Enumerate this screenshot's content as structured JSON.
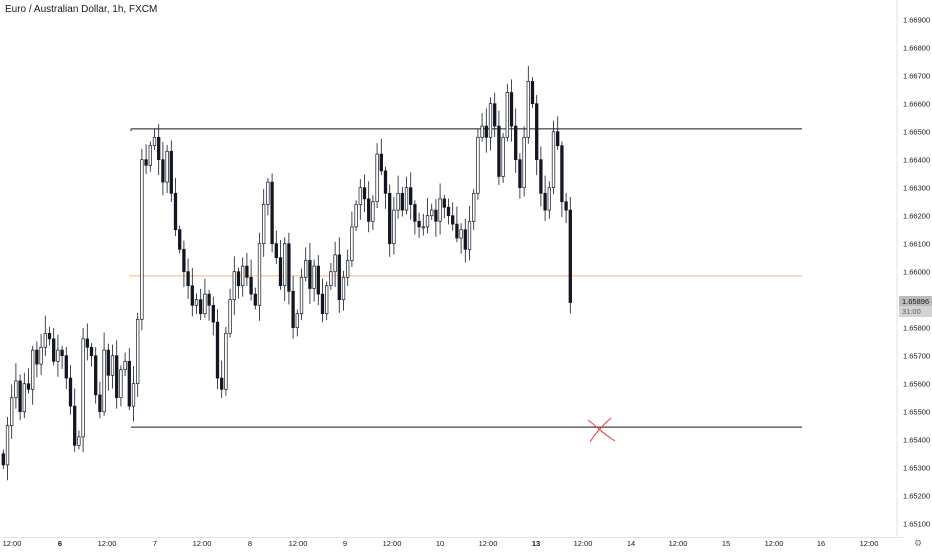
{
  "header": {
    "title": "Euro / Australian Dollar, 1h, FXCM"
  },
  "price_axis": {
    "labels": [
      "1.66900",
      "1.66800",
      "1.66700",
      "1.66600",
      "1.66500",
      "1.66400",
      "1.66300",
      "1.66200",
      "1.66100",
      "1.66000",
      "1.65800",
      "1.65700",
      "1.65600",
      "1.65500",
      "1.65400",
      "1.65300",
      "1.65200",
      "1.65100"
    ],
    "current_price": "1.65896",
    "countdown": "31:00"
  },
  "time_axis": {
    "labels": [
      {
        "text": "12:00",
        "bold": false
      },
      {
        "text": "6",
        "bold": true
      },
      {
        "text": "12:00",
        "bold": false
      },
      {
        "text": "7",
        "bold": false
      },
      {
        "text": "12:00",
        "bold": false
      },
      {
        "text": "8",
        "bold": false
      },
      {
        "text": "12:00",
        "bold": false
      },
      {
        "text": "9",
        "bold": false
      },
      {
        "text": "12:00",
        "bold": false
      },
      {
        "text": "10",
        "bold": false
      },
      {
        "text": "12:00",
        "bold": false
      },
      {
        "text": "13",
        "bold": true
      },
      {
        "text": "12:00",
        "bold": false
      },
      {
        "text": "14",
        "bold": false
      },
      {
        "text": "12:00",
        "bold": false
      },
      {
        "text": "15",
        "bold": false
      },
      {
        "text": "12:00",
        "bold": false
      },
      {
        "text": "16",
        "bold": false
      },
      {
        "text": "12:00",
        "bold": false
      }
    ]
  },
  "drawings": {
    "resistance_price": 1.6651,
    "support_price": 1.65445,
    "mid_line_price": 1.65985,
    "line_color": "#131722",
    "mid_line_color": "#f5b97f",
    "x_mark_color": "#e53935"
  },
  "colors": {
    "bull": "#ffffff",
    "bear": "#131722",
    "wick": "#131722",
    "axis_text": "#131722",
    "badge_bg": "#bcbcbc"
  },
  "chart_data": {
    "type": "candlestick",
    "symbol": "Euro / Australian Dollar",
    "interval": "1h",
    "exchange": "FXCM",
    "y_range": [
      1.6505,
      1.6695
    ],
    "candles_close": [
      1.6531,
      1.6545,
      1.6555,
      1.6561,
      1.655,
      1.656,
      1.6558,
      1.6572,
      1.6567,
      1.6573,
      1.6578,
      1.6576,
      1.6568,
      1.6572,
      1.657,
      1.6562,
      1.6552,
      1.6538,
      1.6541,
      1.6576,
      1.6573,
      1.657,
      1.6556,
      1.655,
      1.6572,
      1.6563,
      1.657,
      1.6555,
      1.6565,
      1.6568,
      1.6552,
      1.656,
      1.6583,
      1.664,
      1.6638,
      1.6645,
      1.6648,
      1.664,
      1.6632,
      1.6643,
      1.6628,
      1.6615,
      1.6608,
      1.66,
      1.6595,
      1.6588,
      1.659,
      1.6585,
      1.6592,
      1.6588,
      1.6582,
      1.6562,
      1.6558,
      1.6578,
      1.659,
      1.66,
      1.6595,
      1.6602,
      1.6598,
      1.6592,
      1.6588,
      1.661,
      1.6624,
      1.6632,
      1.661,
      1.6605,
      1.6595,
      1.661,
      1.6593,
      1.658,
      1.6585,
      1.6598,
      1.6604,
      1.6594,
      1.6602,
      1.6592,
      1.6585,
      1.6595,
      1.66,
      1.6606,
      1.659,
      1.6598,
      1.6604,
      1.6616,
      1.6624,
      1.663,
      1.6626,
      1.6618,
      1.6625,
      1.6642,
      1.6636,
      1.6628,
      1.661,
      1.6622,
      1.6628,
      1.6622,
      1.663,
      1.6624,
      1.6618,
      1.6616,
      1.6616,
      1.662,
      1.6622,
      1.6618,
      1.6626,
      1.6623,
      1.662,
      1.6617,
      1.6612,
      1.6615,
      1.6608,
      1.6618,
      1.6628,
      1.6648,
      1.6652,
      1.6648,
      1.666,
      1.6652,
      1.6634,
      1.6648,
      1.6664,
      1.6652,
      1.664,
      1.663,
      1.6648,
      1.6668,
      1.666,
      1.664,
      1.6628,
      1.6622,
      1.663,
      1.665,
      1.6645,
      1.6625,
      1.6622,
      1.6589
    ]
  }
}
